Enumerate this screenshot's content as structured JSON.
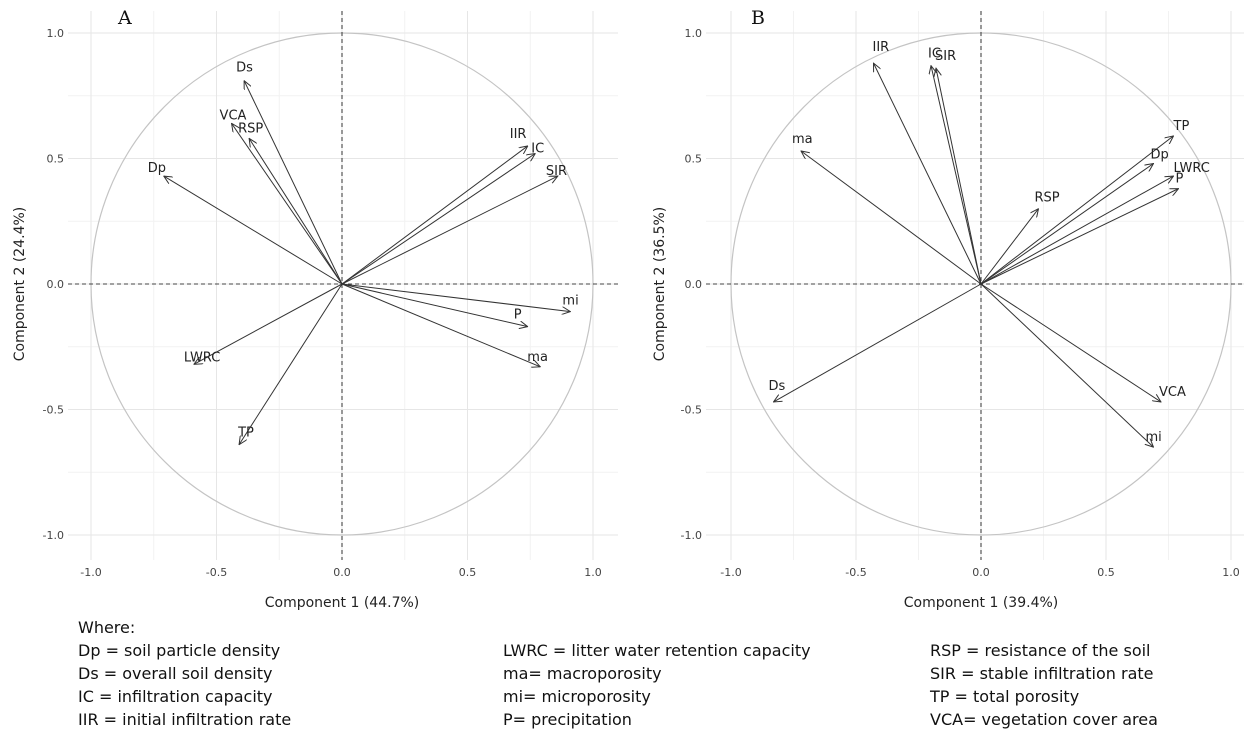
{
  "chart_data": [
    {
      "type": "scatter",
      "panel_label": "A",
      "xlabel": "Component 1 (44.7%)",
      "ylabel": "Component 2 (24.4%)",
      "xlim": [
        -1.05,
        1.05
      ],
      "ylim": [
        -1.05,
        1.05
      ],
      "xticks": [
        "-1.0",
        "-0.5",
        "0.0",
        "0.5",
        "1.0"
      ],
      "yticks": [
        "1.0",
        "0.5",
        "0.0",
        "-0.5",
        "-1.0"
      ],
      "grid": true,
      "unit_circle": true,
      "vectors": [
        {
          "label": "Ds",
          "x": -0.39,
          "y": 0.81
        },
        {
          "label": "VCA",
          "x": -0.44,
          "y": 0.64
        },
        {
          "label": "RSP",
          "x": -0.37,
          "y": 0.58
        },
        {
          "label": "Dp",
          "x": -0.71,
          "y": 0.43
        },
        {
          "label": "IIR",
          "x": 0.74,
          "y": 0.55
        },
        {
          "label": "IC",
          "x": 0.77,
          "y": 0.52
        },
        {
          "label": "SIR",
          "x": 0.86,
          "y": 0.43
        },
        {
          "label": "mi",
          "x": 0.91,
          "y": -0.11
        },
        {
          "label": "P",
          "x": 0.74,
          "y": -0.17
        },
        {
          "label": "ma",
          "x": 0.79,
          "y": -0.33
        },
        {
          "label": "LWRC",
          "x": -0.59,
          "y": -0.32
        },
        {
          "label": "TP",
          "x": -0.41,
          "y": -0.64
        }
      ]
    },
    {
      "type": "scatter",
      "panel_label": "B",
      "xlabel": "Component 1 (39.4%)",
      "ylabel": "Component 2 (36.5%)",
      "xlim": [
        -1.05,
        1.05
      ],
      "ylim": [
        -1.05,
        1.05
      ],
      "xticks": [
        "-1.0",
        "-0.5",
        "0.0",
        "0.5",
        "1.0"
      ],
      "yticks": [
        "1.0",
        "0.5",
        "0.0",
        "-0.5",
        "-1.0"
      ],
      "grid": true,
      "unit_circle": true,
      "vectors": [
        {
          "label": "IIR",
          "x": -0.43,
          "y": 0.88
        },
        {
          "label": "IC",
          "x": -0.2,
          "y": 0.87
        },
        {
          "label": "SIR",
          "x": -0.18,
          "y": 0.86
        },
        {
          "label": "ma",
          "x": -0.72,
          "y": 0.53
        },
        {
          "label": "TP",
          "x": 0.77,
          "y": 0.59
        },
        {
          "label": "Dp",
          "x": 0.69,
          "y": 0.48
        },
        {
          "label": "LWRC",
          "x": 0.77,
          "y": 0.43
        },
        {
          "label": "P",
          "x": 0.79,
          "y": 0.38
        },
        {
          "label": "RSP",
          "x": 0.23,
          "y": 0.3
        },
        {
          "label": "Ds",
          "x": -0.83,
          "y": -0.47
        },
        {
          "label": "VCA",
          "x": 0.72,
          "y": -0.47
        },
        {
          "label": "mi",
          "x": 0.69,
          "y": -0.65
        }
      ]
    }
  ],
  "legend": {
    "heading": "Where:",
    "columns": [
      [
        "Dp = soil particle density",
        "Ds = overall soil density",
        "IC = infiltration capacity",
        "IIR = initial infiltration rate"
      ],
      [
        "LWRC = litter water retention capacity",
        "ma= macroporosity",
        "mi= microporosity",
        "P= precipitation"
      ],
      [
        "RSP = resistance of the soil",
        "SIR = stable infiltration rate",
        "TP = total porosity",
        "VCA= vegetation cover area"
      ]
    ]
  }
}
